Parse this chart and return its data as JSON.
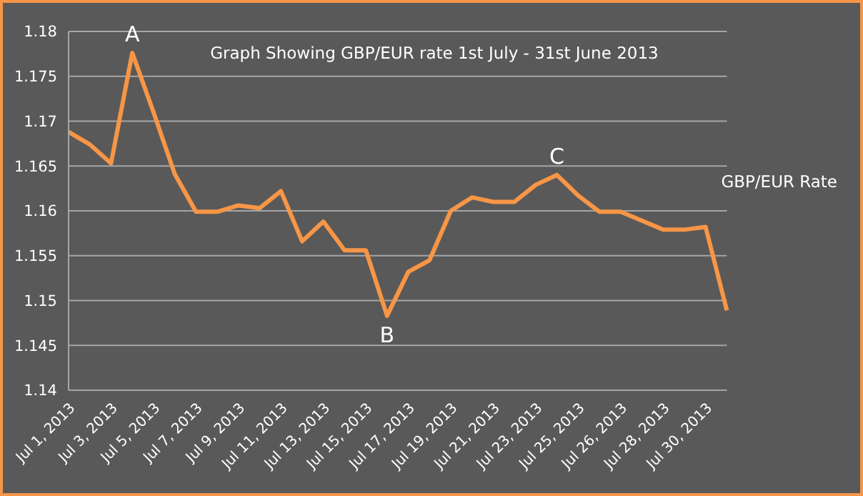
{
  "chart_data": {
    "type": "line",
    "title": "Graph Showing GBP/EUR rate 1st July - 31st June 2013",
    "categories": [
      "Jul 1, 2013",
      null,
      "Jul 3, 2013",
      null,
      "Jul 5, 2013",
      null,
      "Jul 7, 2013",
      null,
      "Jul 9, 2013",
      null,
      "Jul 11, 2013",
      null,
      "Jul 13, 2013",
      null,
      "Jul 15, 2013",
      null,
      "Jul 17, 2013",
      null,
      "Jul 19, 2013",
      null,
      "Jul 21, 2013",
      null,
      "Jul 23, 2013",
      null,
      "Jul 25, 2013",
      null,
      "Jul 26, 2013",
      null,
      "Jul 28, 2013",
      null,
      "Jul 30, 2013",
      null
    ],
    "series": [
      {
        "name": "GBP/EUR Rate",
        "color": "#f79646",
        "values": [
          1.1688,
          1.1674,
          1.1653,
          1.1776,
          1.171,
          1.1641,
          1.1599,
          1.1599,
          1.1606,
          1.1603,
          1.1622,
          1.1566,
          1.1588,
          1.1556,
          1.1556,
          1.1483,
          1.1532,
          1.1545,
          1.16,
          1.1615,
          1.161,
          1.161,
          1.1629,
          1.164,
          1.1617,
          1.1599,
          1.1599,
          1.1589,
          1.1579,
          1.1579,
          1.1582,
          1.1489
        ]
      }
    ],
    "ylim": [
      1.14,
      1.18
    ],
    "yticks": [
      1.14,
      1.145,
      1.15,
      1.155,
      1.16,
      1.165,
      1.17,
      1.175,
      1.18
    ],
    "grid": "y",
    "legend": "right",
    "marker": "none",
    "line_style": "solid",
    "annotations": [
      {
        "text": "A",
        "y": 1.1776
      },
      {
        "text": "B",
        "y": 1.1483
      },
      {
        "text": "C",
        "y": 1.164
      }
    ]
  }
}
